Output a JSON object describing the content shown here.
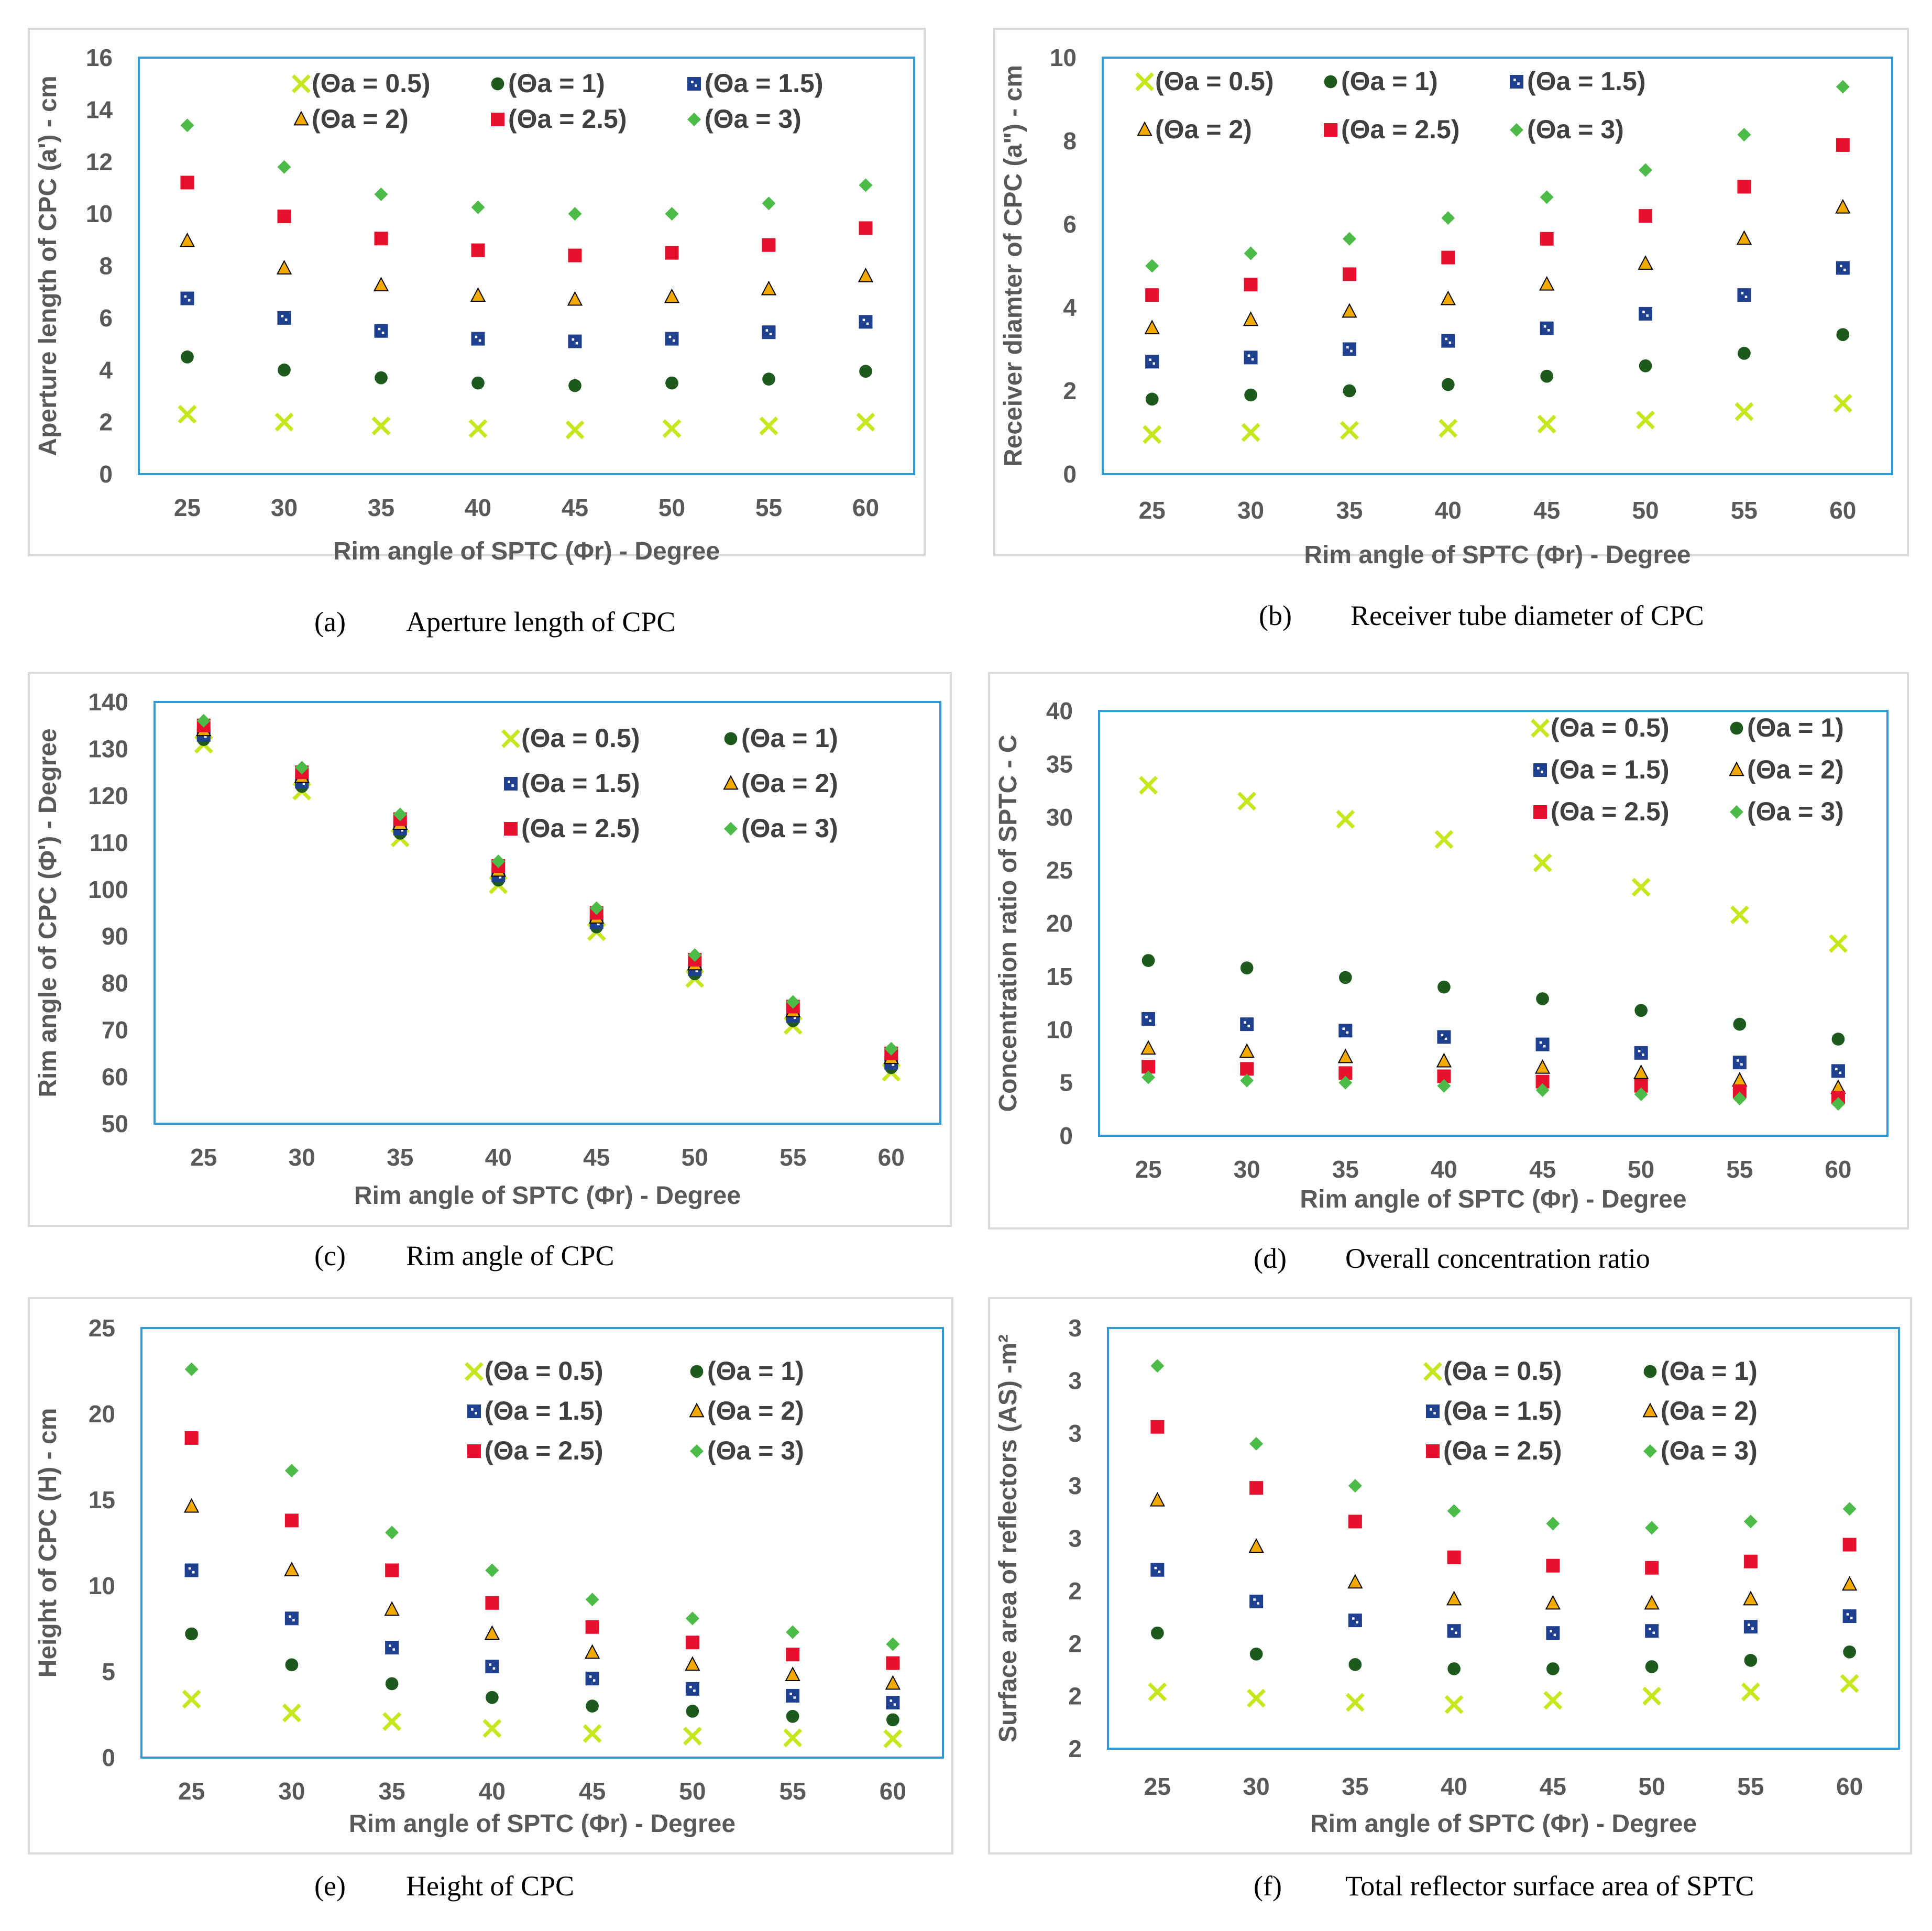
{
  "legend_labels": [
    "(Θa  = 0.5)",
    "(Θa  = 1)",
    "(Θa  = 1.5)",
    "(Θa  = 2)",
    "(Θa  = 2.5)",
    "(Θa  = 3)"
  ],
  "series_styles": [
    {
      "marker": "x",
      "color": "#c8e61e"
    },
    {
      "marker": "circle",
      "color": "#1e5a1e"
    },
    {
      "marker": "square-blue",
      "color": "#1f3f8f"
    },
    {
      "marker": "triangle",
      "color": "#f2a900"
    },
    {
      "marker": "square-red",
      "color": "#e8112d"
    },
    {
      "marker": "diamond",
      "color": "#4cbb47"
    }
  ],
  "chart_data": [
    {
      "panel": "a",
      "type": "scatter",
      "caption_letter": "(a)",
      "caption": "Aperture length of CPC",
      "xlabel": "Rim angle of SPTC (Φr) - Degree",
      "ylabel": "Aperture length of CPC (a') - cm",
      "categories": [
        25,
        30,
        35,
        40,
        45,
        50,
        55,
        60
      ],
      "ylim": [
        0,
        16
      ],
      "yticks": [
        0,
        2,
        4,
        6,
        8,
        10,
        12,
        14,
        16
      ],
      "legend_position": "top",
      "series": [
        {
          "name": "(Θa  = 0.5)",
          "values": [
            2.3,
            2.0,
            1.85,
            1.75,
            1.7,
            1.75,
            1.85,
            2.0
          ]
        },
        {
          "name": "(Θa  = 1)",
          "values": [
            4.5,
            4.0,
            3.7,
            3.5,
            3.4,
            3.5,
            3.65,
            3.95
          ]
        },
        {
          "name": "(Θa  = 1.5)",
          "values": [
            6.75,
            6.0,
            5.5,
            5.2,
            5.1,
            5.2,
            5.45,
            5.85
          ]
        },
        {
          "name": "(Θa  = 2)",
          "values": [
            8.95,
            7.9,
            7.25,
            6.85,
            6.7,
            6.8,
            7.1,
            7.6
          ]
        },
        {
          "name": "(Θa  = 2.5)",
          "values": [
            11.2,
            9.9,
            9.05,
            8.6,
            8.4,
            8.5,
            8.8,
            9.45
          ]
        },
        {
          "name": "(Θa  = 3)",
          "values": [
            13.4,
            11.8,
            10.75,
            10.25,
            10.0,
            10.0,
            10.4,
            11.1
          ]
        }
      ]
    },
    {
      "panel": "b",
      "type": "scatter",
      "caption_letter": "(b)",
      "caption": "Receiver tube diameter of CPC",
      "xlabel": "Rim angle of SPTC (Φr) - Degree",
      "ylabel": "Receiver diamter of CPC (a\") - cm",
      "categories": [
        25,
        30,
        35,
        40,
        45,
        50,
        55,
        60
      ],
      "ylim": [
        0,
        10
      ],
      "yticks": [
        0,
        2,
        4,
        6,
        8,
        10
      ],
      "legend_position": "top",
      "series": [
        {
          "name": "(Θa  = 0.5)",
          "values": [
            0.95,
            1.0,
            1.05,
            1.1,
            1.2,
            1.3,
            1.5,
            1.7
          ]
        },
        {
          "name": "(Θa  = 1)",
          "values": [
            1.8,
            1.9,
            2.0,
            2.15,
            2.35,
            2.6,
            2.9,
            3.35
          ]
        },
        {
          "name": "(Θa  = 1.5)",
          "values": [
            2.7,
            2.8,
            3.0,
            3.2,
            3.5,
            3.85,
            4.3,
            4.95
          ]
        },
        {
          "name": "(Θa  = 2)",
          "values": [
            3.5,
            3.7,
            3.9,
            4.2,
            4.55,
            5.05,
            5.65,
            6.4
          ]
        },
        {
          "name": "(Θa  = 2.5)",
          "values": [
            4.3,
            4.55,
            4.8,
            5.2,
            5.65,
            6.2,
            6.9,
            7.9
          ]
        },
        {
          "name": "(Θa  = 3)",
          "values": [
            5.0,
            5.3,
            5.65,
            6.15,
            6.65,
            7.3,
            8.15,
            9.3
          ]
        }
      ]
    },
    {
      "panel": "c",
      "type": "scatter",
      "caption_letter": "(c)",
      "caption": "Rim angle of CPC",
      "xlabel": "Rim angle of SPTC (Φr) - Degree",
      "ylabel": "Rim angle of CPC (Φ') - Degree",
      "categories": [
        25,
        30,
        35,
        40,
        45,
        50,
        55,
        60
      ],
      "ylim": [
        50,
        140
      ],
      "yticks": [
        50,
        60,
        70,
        80,
        90,
        100,
        110,
        120,
        130,
        140
      ],
      "legend_position": "top-right",
      "series": [
        {
          "name": "(Θa  = 0.5)",
          "values": [
            131,
            121,
            111,
            101,
            91,
            81,
            71,
            61
          ]
        },
        {
          "name": "(Θa  = 1)",
          "values": [
            132,
            122,
            112,
            102,
            92,
            82,
            72,
            62
          ]
        },
        {
          "name": "(Θa  = 1.5)",
          "values": [
            133,
            123,
            113,
            103,
            93,
            83,
            73,
            63
          ]
        },
        {
          "name": "(Θa  = 2)",
          "values": [
            134,
            124,
            114,
            104,
            94,
            84,
            74,
            64
          ]
        },
        {
          "name": "(Θa  = 2.5)",
          "values": [
            135,
            125,
            115,
            105,
            95,
            85,
            75,
            65
          ]
        },
        {
          "name": "(Θa  = 3)",
          "values": [
            136,
            126,
            116,
            106,
            96,
            86,
            76,
            66
          ]
        }
      ]
    },
    {
      "panel": "d",
      "type": "scatter",
      "caption_letter": "(d)",
      "caption": "Overall concentration ratio",
      "xlabel": "Rim angle of SPTC (Φr) - Degree",
      "ylabel": "Concentration ratio of SPTC - C",
      "categories": [
        25,
        30,
        35,
        40,
        45,
        50,
        55,
        60
      ],
      "ylim": [
        0,
        40
      ],
      "yticks": [
        0,
        5,
        10,
        15,
        20,
        25,
        30,
        35,
        40
      ],
      "legend_position": "top-right",
      "series": [
        {
          "name": "(Θa  = 0.5)",
          "values": [
            33.0,
            31.5,
            29.8,
            27.9,
            25.7,
            23.4,
            20.8,
            18.1
          ]
        },
        {
          "name": "(Θa  = 1)",
          "values": [
            16.5,
            15.8,
            14.9,
            14.0,
            12.9,
            11.8,
            10.5,
            9.1
          ]
        },
        {
          "name": "(Θa  = 1.5)",
          "values": [
            11.0,
            10.5,
            9.9,
            9.3,
            8.6,
            7.8,
            6.9,
            6.1
          ]
        },
        {
          "name": "(Θa  = 2)",
          "values": [
            8.2,
            7.9,
            7.4,
            7.0,
            6.4,
            5.9,
            5.2,
            4.5
          ]
        },
        {
          "name": "(Θa  = 2.5)",
          "values": [
            6.5,
            6.3,
            5.9,
            5.6,
            5.1,
            4.7,
            4.2,
            3.6
          ]
        },
        {
          "name": "(Θa  = 3)",
          "values": [
            5.5,
            5.2,
            5.0,
            4.7,
            4.3,
            3.9,
            3.5,
            3.0
          ]
        }
      ]
    },
    {
      "panel": "e",
      "type": "scatter",
      "caption_letter": "(e)",
      "caption": "Height of CPC",
      "xlabel": "Rim angle of SPTC (Φr) - Degree",
      "ylabel": "Height of CPC (H) - cm",
      "categories": [
        25,
        30,
        35,
        40,
        45,
        50,
        55,
        60
      ],
      "ylim": [
        0,
        25
      ],
      "yticks": [
        0,
        5,
        10,
        15,
        20,
        25
      ],
      "legend_position": "top-right",
      "series": [
        {
          "name": "(Θa  = 0.5)",
          "values": [
            3.4,
            2.6,
            2.1,
            1.7,
            1.4,
            1.25,
            1.15,
            1.1
          ]
        },
        {
          "name": "(Θa  = 1)",
          "values": [
            7.2,
            5.4,
            4.3,
            3.5,
            3.0,
            2.7,
            2.4,
            2.2
          ]
        },
        {
          "name": "(Θa  = 1.5)",
          "values": [
            10.9,
            8.1,
            6.4,
            5.3,
            4.6,
            4.0,
            3.6,
            3.2
          ]
        },
        {
          "name": "(Θa  = 2)",
          "values": [
            14.6,
            10.9,
            8.6,
            7.2,
            6.1,
            5.4,
            4.8,
            4.3
          ]
        },
        {
          "name": "(Θa  = 2.5)",
          "values": [
            18.6,
            13.8,
            10.9,
            9.0,
            7.6,
            6.7,
            6.0,
            5.5
          ]
        },
        {
          "name": "(Θa  = 3)",
          "values": [
            22.6,
            16.7,
            13.1,
            10.9,
            9.2,
            8.1,
            7.3,
            6.6
          ]
        }
      ]
    },
    {
      "panel": "f",
      "type": "scatter",
      "caption_letter": "(f)",
      "caption": "Total reflector surface area of SPTC",
      "xlabel": "Rim angle of SPTC (Φr) - Degree",
      "ylabel": "Surface area of reflectors (AS) -m²",
      "categories": [
        25,
        30,
        35,
        40,
        45,
        50,
        55,
        60
      ],
      "ylim": [
        1.5,
        3.5
      ],
      "yticks": [
        1.5,
        1.75,
        2.0,
        2.25,
        2.5,
        2.75,
        3.0,
        3.25,
        3.5
      ],
      "ytick_labels": [
        "2",
        "2",
        "2",
        "2",
        "3",
        "3",
        "3",
        "3",
        "3"
      ],
      "legend_position": "top-right",
      "series": [
        {
          "name": "(Θa  = 0.5)",
          "values": [
            1.77,
            1.74,
            1.72,
            1.71,
            1.73,
            1.75,
            1.77,
            1.81
          ]
        },
        {
          "name": "(Θa  = 1)",
          "values": [
            2.05,
            1.95,
            1.9,
            1.88,
            1.88,
            1.89,
            1.92,
            1.96
          ]
        },
        {
          "name": "(Θa  = 1.5)",
          "values": [
            2.35,
            2.2,
            2.11,
            2.06,
            2.05,
            2.06,
            2.08,
            2.13
          ]
        },
        {
          "name": "(Θa  = 2)",
          "values": [
            2.68,
            2.46,
            2.29,
            2.21,
            2.19,
            2.19,
            2.21,
            2.28
          ]
        },
        {
          "name": "(Θa  = 2.5)",
          "values": [
            3.03,
            2.74,
            2.58,
            2.41,
            2.37,
            2.36,
            2.39,
            2.47
          ]
        },
        {
          "name": "(Θa  = 3)",
          "values": [
            3.32,
            2.95,
            2.75,
            2.63,
            2.57,
            2.55,
            2.58,
            2.64
          ]
        }
      ]
    }
  ]
}
